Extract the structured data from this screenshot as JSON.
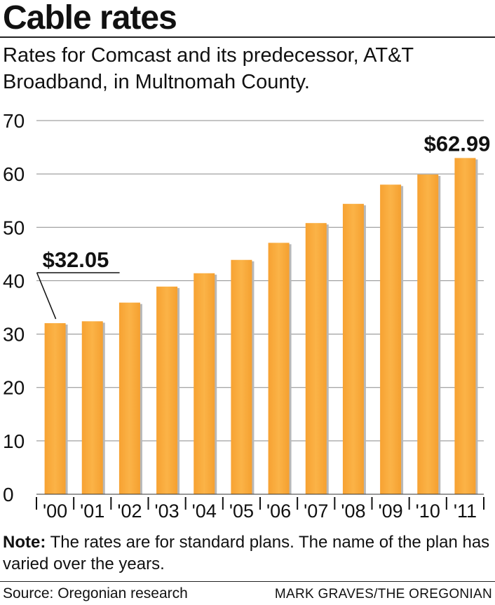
{
  "header": {
    "title": "Cable rates",
    "subtitle": "Rates for Comcast and its predecessor, AT&T Broadband, in Multnomah County."
  },
  "chart_data": {
    "type": "bar",
    "title": "Cable rates",
    "subtitle": "Rates for Comcast and its predecessor, AT&T Broadband, in Multnomah County.",
    "xlabel": "",
    "ylabel": "",
    "categories": [
      "'00",
      "'01",
      "'02",
      "'03",
      "'04",
      "'05",
      "'06",
      "'07",
      "'08",
      "'09",
      "'10",
      "'11"
    ],
    "values": [
      32.05,
      32.4,
      35.9,
      38.9,
      41.4,
      43.9,
      47.1,
      50.8,
      54.4,
      58.0,
      59.9,
      62.99
    ],
    "yticks": [
      0,
      10,
      20,
      30,
      40,
      50,
      60,
      70
    ],
    "ylim": [
      0,
      70
    ],
    "grid": true,
    "bar_color": "#fbb040",
    "annotations": [
      {
        "category_index": 0,
        "text": "$32.05"
      },
      {
        "category_index": 11,
        "text": "$62.99"
      }
    ]
  },
  "note": {
    "label": "Note:",
    "text": " The rates are for standard plans. The name of the plan has varied over the years."
  },
  "footer": {
    "source": "Source: Oregonian research",
    "credit": "MARK GRAVES/THE OREGONIAN"
  }
}
